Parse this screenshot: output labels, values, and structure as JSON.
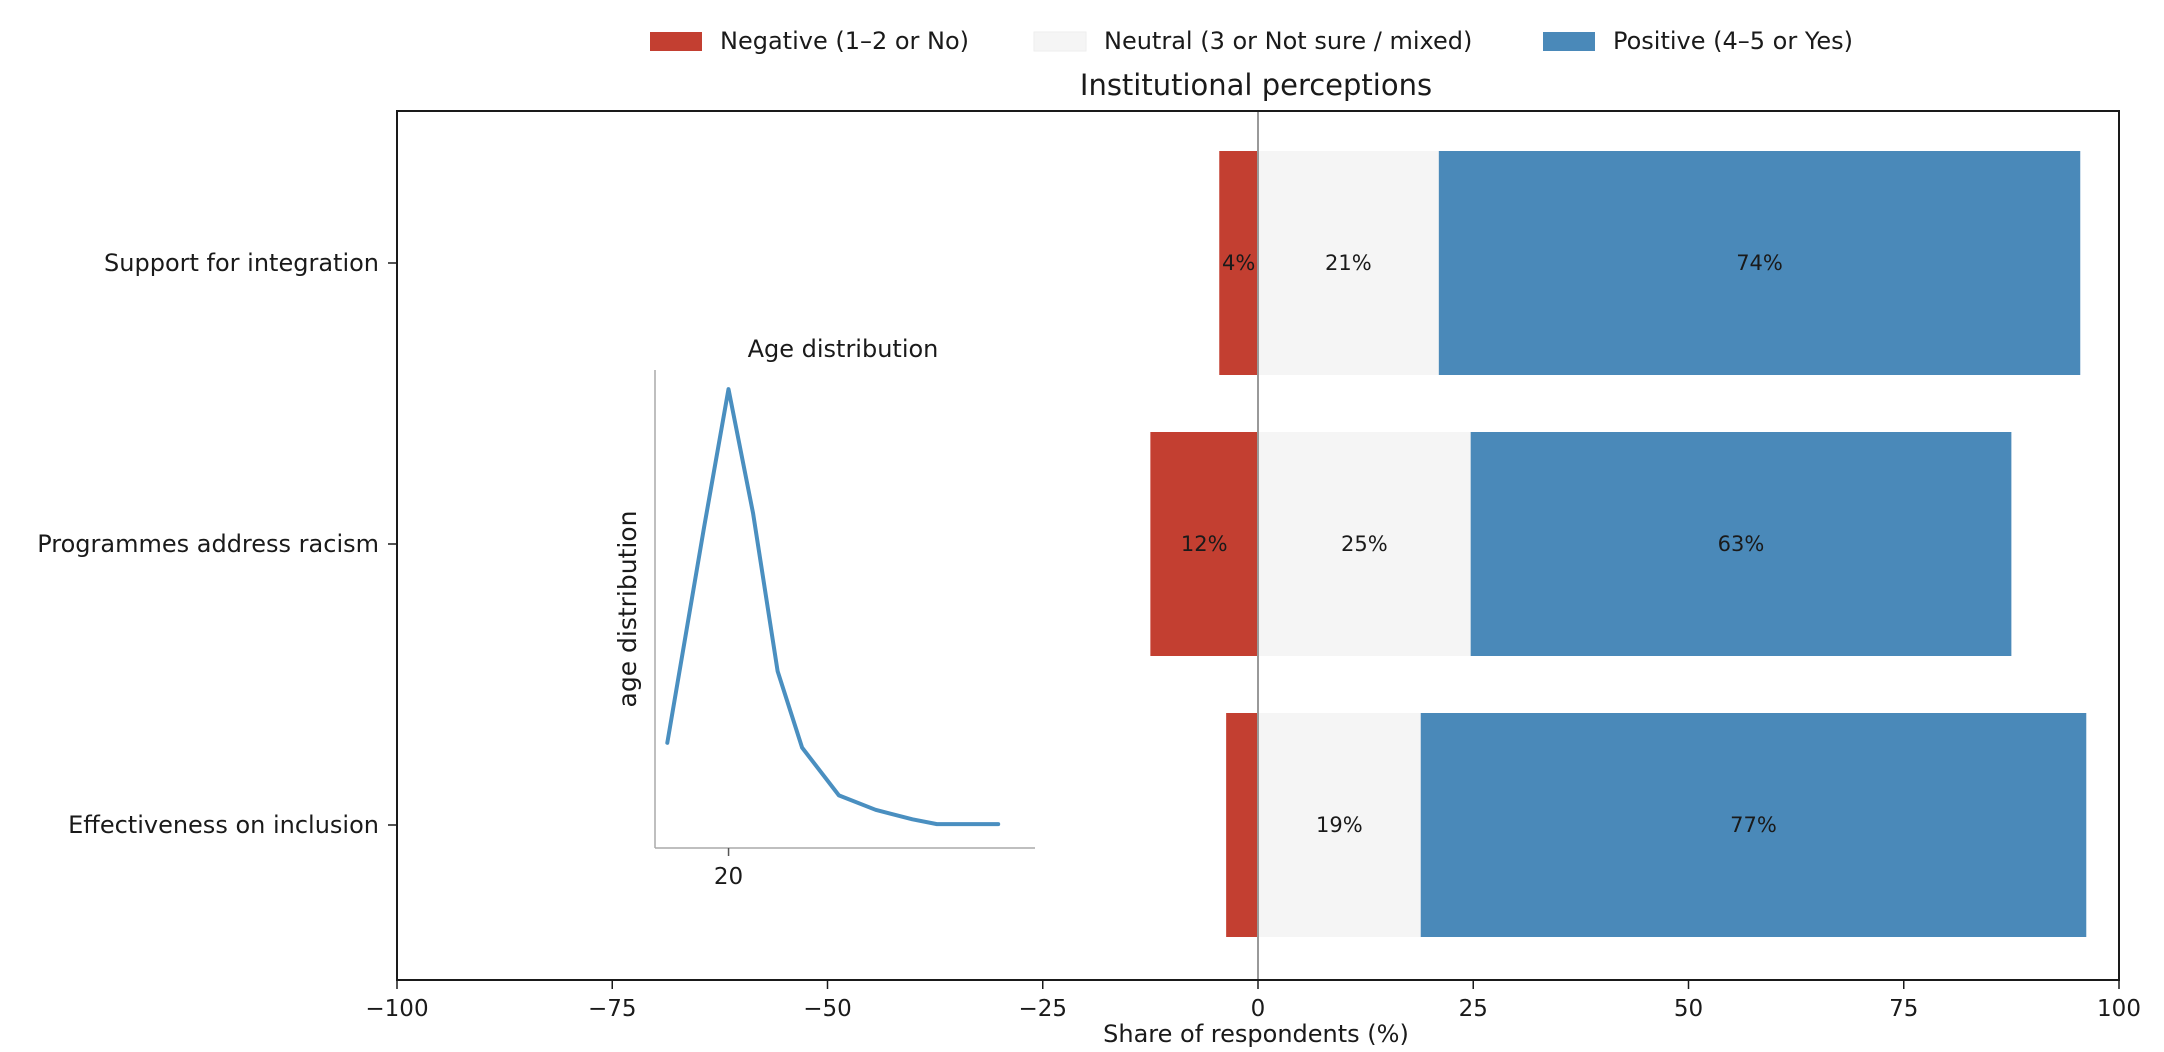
{
  "chart_data": {
    "type": "bar",
    "orientation": "horizontal",
    "stacking": "diverging",
    "title": "Institutional perceptions",
    "xlabel": "Share of respondents (%)",
    "ylabel": "",
    "xlim": [
      -100,
      100
    ],
    "xticks": [
      -100,
      -75,
      -50,
      -25,
      0,
      25,
      50,
      75,
      100
    ],
    "xtick_labels": [
      "−100",
      "−75",
      "−50",
      "−25",
      "0",
      "25",
      "50",
      "75",
      "100"
    ],
    "grid": false,
    "legend_position": "top-center",
    "categories": [
      "Support for integration",
      "Programmes address racism",
      "Effectiveness on inclusion"
    ],
    "series": [
      {
        "name": "Negative (1–2 or No)",
        "color": "#c33f31",
        "values": [
          4.5,
          12.5,
          3.7
        ],
        "labels": [
          "4%",
          "12%",
          ""
        ]
      },
      {
        "name": "Neutral (3 or Not sure / mixed)",
        "color": "#f5f5f5",
        "values": [
          21,
          24.7,
          18.9
        ],
        "labels": [
          "21%",
          "25%",
          "19%"
        ]
      },
      {
        "name": "Positive (4–5 or Yes)",
        "color": "#4a89b9",
        "values": [
          74.5,
          62.8,
          77.3
        ],
        "labels": [
          "74%",
          "63%",
          "77%"
        ]
      }
    ],
    "inset": {
      "type": "line",
      "title": "Age distribution",
      "ylabel": "age distribution",
      "xlabel": "",
      "xlim": [
        14,
        45
      ],
      "ylim": [
        0,
        1
      ],
      "xticks": [
        20
      ],
      "xtick_labels": [
        "20"
      ],
      "color": "#4a8fc0",
      "x": [
        15,
        18,
        20,
        22,
        24,
        26,
        29,
        32,
        35,
        37,
        39,
        42
      ],
      "y": [
        0.22,
        0.67,
        0.96,
        0.7,
        0.37,
        0.21,
        0.11,
        0.08,
        0.06,
        0.05,
        0.05,
        0.05
      ]
    }
  }
}
